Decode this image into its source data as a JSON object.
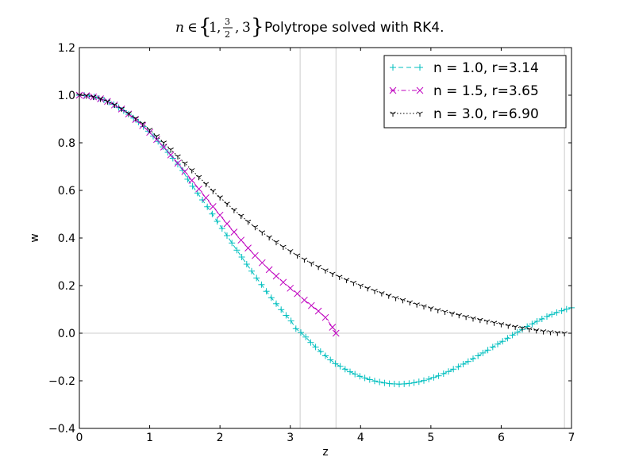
{
  "chart_data": {
    "type": "line",
    "title": "Polytrope solved with RK4.",
    "title_math": {
      "var": "n",
      "rel": "∈",
      "open": "{",
      "v1": "1",
      "sep1": ",",
      "frac_num": "3",
      "frac_den": "2",
      "sep2": ",",
      "v3": "3",
      "close": "}"
    },
    "xlabel": "z",
    "ylabel": "w",
    "xlim": [
      0,
      7
    ],
    "ylim": [
      -0.4,
      1.2
    ],
    "xticks": [
      "0",
      "1",
      "2",
      "3",
      "4",
      "5",
      "6",
      "7"
    ],
    "yticks": [
      "−0.4",
      "−0.2",
      "0.0",
      "0.2",
      "0.4",
      "0.6",
      "0.8",
      "1.0",
      "1.2"
    ],
    "grid": false,
    "zero_line": true,
    "radius_lines": [
      3.14,
      3.65,
      6.9
    ],
    "legend_position": "top-right",
    "colors": {
      "n1": "#00bfbf",
      "n15": "#bf00bf",
      "n3": "#000000",
      "refline": "#cccccc"
    },
    "series": [
      {
        "name": "n = 1.0, r=3.14",
        "n": 1.0,
        "color": "#00bfbf",
        "line": "dashed",
        "marker": "plus",
        "x": [
          0.0,
          0.07,
          0.14,
          0.21,
          0.28,
          0.35,
          0.42,
          0.49,
          0.56,
          0.63,
          0.7,
          0.77,
          0.84,
          0.91,
          0.98,
          1.05,
          1.12,
          1.19,
          1.26,
          1.33,
          1.4,
          1.47,
          1.54,
          1.61,
          1.68,
          1.75,
          1.82,
          1.89,
          1.96,
          2.03,
          2.1,
          2.17,
          2.24,
          2.31,
          2.38,
          2.45,
          2.52,
          2.59,
          2.66,
          2.73,
          2.8,
          2.87,
          2.94,
          3.01,
          3.08,
          3.15,
          3.22,
          3.29,
          3.36,
          3.43,
          3.5,
          3.57,
          3.64,
          3.71,
          3.78,
          3.85,
          3.92,
          3.99,
          4.06,
          4.13,
          4.2,
          4.27,
          4.34,
          4.41,
          4.48,
          4.55,
          4.62,
          4.69,
          4.76,
          4.83,
          4.9,
          4.97,
          5.04,
          5.11,
          5.18,
          5.25,
          5.32,
          5.39,
          5.46,
          5.53,
          5.6,
          5.67,
          5.74,
          5.81,
          5.88,
          5.95,
          6.02,
          6.09,
          6.16,
          6.23,
          6.3,
          6.37,
          6.44,
          6.51,
          6.58,
          6.65,
          6.72,
          6.79,
          6.86,
          6.93,
          7.0
        ],
        "y": [
          1.0,
          0.999,
          0.997,
          0.993,
          0.987,
          0.98,
          0.971,
          0.961,
          0.948,
          0.935,
          0.92,
          0.904,
          0.887,
          0.868,
          0.849,
          0.828,
          0.806,
          0.783,
          0.76,
          0.735,
          0.71,
          0.684,
          0.647,
          0.618,
          0.589,
          0.56,
          0.531,
          0.501,
          0.47,
          0.44,
          0.41,
          0.379,
          0.349,
          0.32,
          0.29,
          0.261,
          0.232,
          0.204,
          0.176,
          0.149,
          0.124,
          0.099,
          0.075,
          0.052,
          0.019,
          0.003,
          -0.016,
          -0.039,
          -0.058,
          -0.077,
          -0.095,
          -0.112,
          -0.128,
          -0.139,
          -0.151,
          -0.162,
          -0.172,
          -0.181,
          -0.188,
          -0.195,
          -0.201,
          -0.205,
          -0.209,
          -0.212,
          -0.213,
          -0.214,
          -0.213,
          -0.211,
          -0.208,
          -0.204,
          -0.199,
          -0.193,
          -0.186,
          -0.179,
          -0.17,
          -0.161,
          -0.151,
          -0.141,
          -0.13,
          -0.119,
          -0.107,
          -0.095,
          -0.083,
          -0.071,
          -0.058,
          -0.046,
          -0.034,
          -0.021,
          -0.008,
          0.004,
          0.016,
          0.028,
          0.039,
          0.05,
          0.06,
          0.07,
          0.079,
          0.087,
          0.094,
          0.101,
          0.107
        ]
      },
      {
        "name": "n = 1.5, r=3.65",
        "n": 1.5,
        "color": "#bf00bf",
        "line": "dashdot",
        "marker": "x",
        "x": [
          0.0,
          0.1,
          0.2,
          0.3,
          0.4,
          0.5,
          0.6,
          0.7,
          0.8,
          0.9,
          1.0,
          1.1,
          1.2,
          1.3,
          1.4,
          1.5,
          1.6,
          1.7,
          1.8,
          1.9,
          2.0,
          2.1,
          2.2,
          2.3,
          2.4,
          2.5,
          2.6,
          2.7,
          2.8,
          2.9,
          3.0,
          3.1,
          3.2,
          3.3,
          3.4,
          3.5,
          3.6,
          3.65
        ],
        "y": [
          1.0,
          0.998,
          0.993,
          0.985,
          0.974,
          0.959,
          0.942,
          0.921,
          0.898,
          0.872,
          0.844,
          0.814,
          0.782,
          0.749,
          0.714,
          0.679,
          0.642,
          0.606,
          0.569,
          0.532,
          0.496,
          0.46,
          0.425,
          0.391,
          0.358,
          0.326,
          0.296,
          0.267,
          0.24,
          0.214,
          0.189,
          0.166,
          0.139,
          0.116,
          0.093,
          0.066,
          0.025,
          0.0
        ]
      },
      {
        "name": "n = 3.0, r=6.90",
        "n": 3.0,
        "color": "#000000",
        "line": "dotted",
        "marker": "tri_down",
        "x": [
          0.0,
          0.1,
          0.2,
          0.3,
          0.4,
          0.5,
          0.6,
          0.7,
          0.8,
          0.9,
          1.0,
          1.1,
          1.2,
          1.3,
          1.4,
          1.5,
          1.6,
          1.7,
          1.8,
          1.9,
          2.0,
          2.1,
          2.2,
          2.3,
          2.4,
          2.5,
          2.6,
          2.7,
          2.8,
          2.9,
          3.0,
          3.1,
          3.2,
          3.3,
          3.4,
          3.5,
          3.6,
          3.7,
          3.8,
          3.9,
          4.0,
          4.1,
          4.2,
          4.3,
          4.4,
          4.5,
          4.6,
          4.7,
          4.8,
          4.9,
          5.0,
          5.1,
          5.2,
          5.3,
          5.4,
          5.5,
          5.6,
          5.7,
          5.8,
          5.9,
          6.0,
          6.1,
          6.2,
          6.3,
          6.4,
          6.5,
          6.6,
          6.7,
          6.8,
          6.9
        ],
        "y": [
          1.0,
          0.998,
          0.993,
          0.985,
          0.974,
          0.96,
          0.943,
          0.924,
          0.903,
          0.881,
          0.855,
          0.828,
          0.801,
          0.772,
          0.743,
          0.714,
          0.685,
          0.656,
          0.627,
          0.598,
          0.571,
          0.544,
          0.518,
          0.493,
          0.469,
          0.446,
          0.424,
          0.403,
          0.383,
          0.363,
          0.345,
          0.327,
          0.31,
          0.294,
          0.279,
          0.264,
          0.25,
          0.237,
          0.224,
          0.212,
          0.2,
          0.189,
          0.178,
          0.168,
          0.158,
          0.148,
          0.139,
          0.13,
          0.121,
          0.113,
          0.105,
          0.097,
          0.09,
          0.083,
          0.076,
          0.069,
          0.062,
          0.056,
          0.05,
          0.044,
          0.038,
          0.032,
          0.027,
          0.022,
          0.017,
          0.012,
          0.008,
          0.005,
          0.002,
          0.0
        ]
      }
    ]
  }
}
